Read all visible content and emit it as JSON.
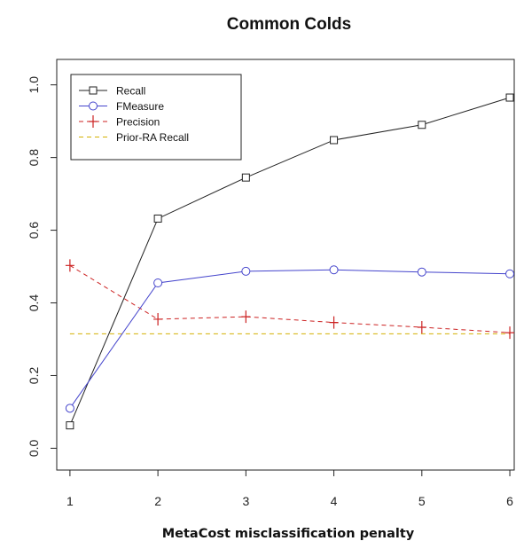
{
  "chart_data": {
    "type": "line",
    "title": "Common Colds",
    "xlabel": "MetaCost misclassification penalty",
    "ylabel": "",
    "x": [
      1,
      2,
      3,
      4,
      5,
      6
    ],
    "xlim": [
      0.85,
      6.05
    ],
    "ylim": [
      -0.06,
      1.07
    ],
    "x_ticks": [
      "1",
      "2",
      "3",
      "4",
      "5",
      "6"
    ],
    "y_ticks": [
      "0.0",
      "0.2",
      "0.4",
      "0.6",
      "0.8",
      "1.0"
    ],
    "y_tick_values": [
      0,
      0.2,
      0.4,
      0.6,
      0.8,
      1.0
    ],
    "grid": false,
    "legend_position": "top-left",
    "series": [
      {
        "name": "Recall",
        "values": [
          0.063,
          0.632,
          0.745,
          0.848,
          0.89,
          0.965
        ],
        "color": "#222222",
        "dash": "solid",
        "marker": "square"
      },
      {
        "name": "FMeasure",
        "values": [
          0.11,
          0.455,
          0.487,
          0.491,
          0.485,
          0.48
        ],
        "color": "#4444cc",
        "dash": "solid",
        "marker": "circle"
      },
      {
        "name": "Precision",
        "values": [
          0.503,
          0.355,
          0.362,
          0.346,
          0.333,
          0.318
        ],
        "color": "#cc2222",
        "dash": "dashed",
        "marker": "plus"
      },
      {
        "name": "Prior-RA Recall",
        "values": [
          0.315,
          0.315,
          0.315,
          0.315,
          0.315,
          0.315
        ],
        "color": "#d4b000",
        "dash": "dashed",
        "marker": "none"
      }
    ]
  }
}
